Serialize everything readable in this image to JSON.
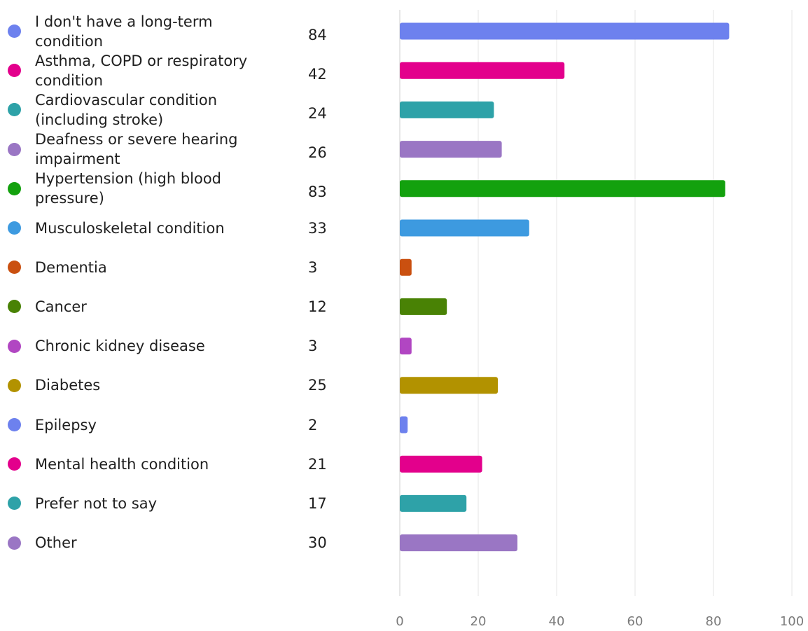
{
  "chart_data": {
    "type": "bar",
    "orientation": "horizontal",
    "categories": [
      "I don't have a long-term condition",
      "Asthma, COPD or respiratory condition",
      "Cardiovascular condition (including stroke)",
      "Deafness or severe hearing impairment",
      "Hypertension (high blood pressure)",
      "Musculoskeletal condition",
      "Dementia",
      "Cancer",
      "Chronic kidney disease",
      "Diabetes",
      "Epilepsy",
      "Mental health condition",
      "Prefer not to say",
      "Other"
    ],
    "values": [
      84,
      42,
      24,
      26,
      83,
      33,
      3,
      12,
      3,
      25,
      2,
      21,
      17,
      30
    ],
    "colors": [
      "#6d81ee",
      "#e3008c",
      "#2ea2a8",
      "#9a76c4",
      "#13a10e",
      "#3d9ae0",
      "#ca5010",
      "#498205",
      "#b146c2",
      "#b29200",
      "#6d81ee",
      "#e3008c",
      "#2ea2a8",
      "#9a76c4"
    ],
    "xlim": [
      0,
      100
    ],
    "xticks": [
      0,
      20,
      40,
      60,
      80,
      100
    ],
    "grid": true,
    "legend_placement": "left"
  }
}
